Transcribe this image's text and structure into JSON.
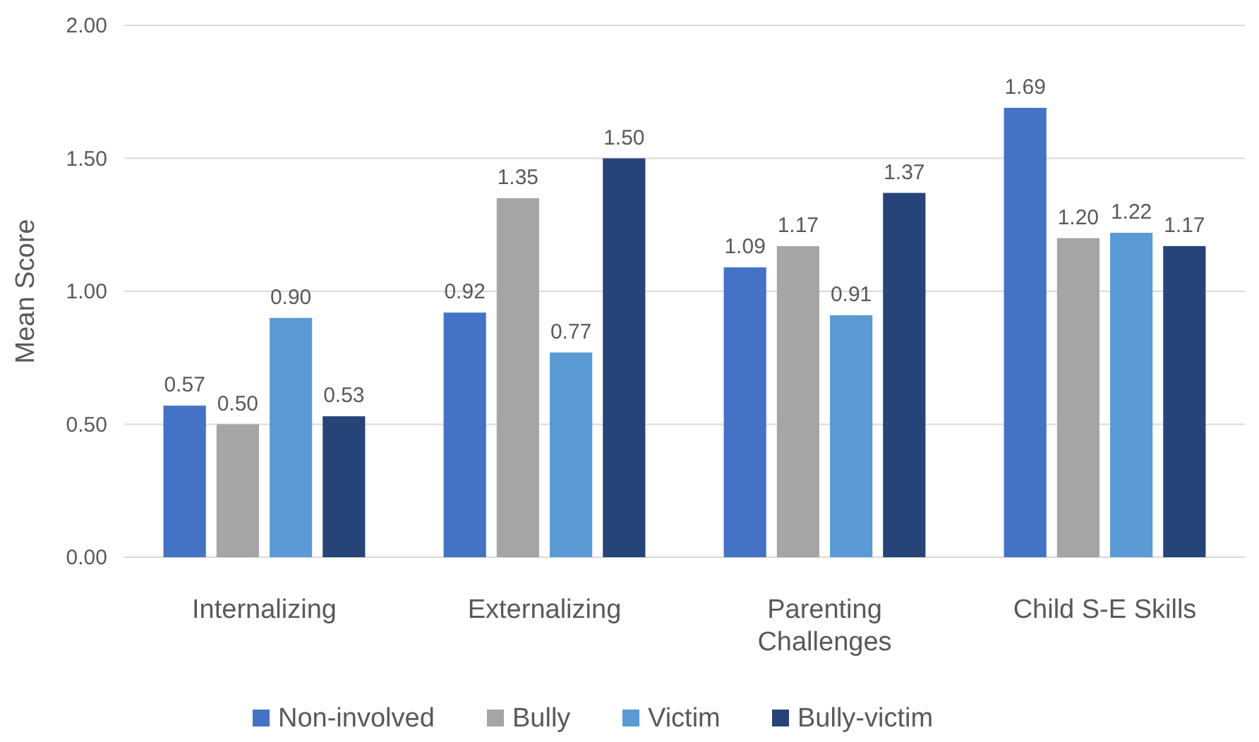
{
  "chart_data": {
    "type": "bar",
    "ylabel": "Mean Score",
    "categories": [
      "Internalizing",
      "Externalizing",
      "Parenting Challenges",
      "Child S-E Skills"
    ],
    "series": [
      {
        "name": "Non-involved",
        "color": "#4472c4",
        "values": [
          0.57,
          0.92,
          1.09,
          1.69
        ],
        "value_labels": [
          "0.57",
          "0.92",
          "1.09",
          "1.69"
        ]
      },
      {
        "name": "Bully",
        "color": "#a5a5a5",
        "values": [
          0.5,
          1.35,
          1.17,
          1.2
        ],
        "value_labels": [
          "0.50",
          "1.35",
          "1.17",
          "1.20"
        ]
      },
      {
        "name": "Victim",
        "color": "#5b9bd5",
        "values": [
          0.9,
          0.77,
          0.91,
          1.22
        ],
        "value_labels": [
          "0.90",
          "0.77",
          "0.91",
          "1.22"
        ]
      },
      {
        "name": "Bully-victim",
        "color": "#264478",
        "values": [
          0.53,
          1.5,
          1.37,
          1.17
        ],
        "value_labels": [
          "0.53",
          "1.50",
          "1.37",
          "1.17"
        ]
      }
    ],
    "ylim": [
      0,
      2
    ],
    "yticks": [
      {
        "value": 0,
        "label": "0.00"
      },
      {
        "value": 0.5,
        "label": "0.50"
      },
      {
        "value": 1,
        "label": "1.00"
      },
      {
        "value": 1.5,
        "label": "1.50"
      },
      {
        "value": 2,
        "label": "2.00"
      }
    ],
    "grid": "y",
    "legend": "bottom"
  }
}
